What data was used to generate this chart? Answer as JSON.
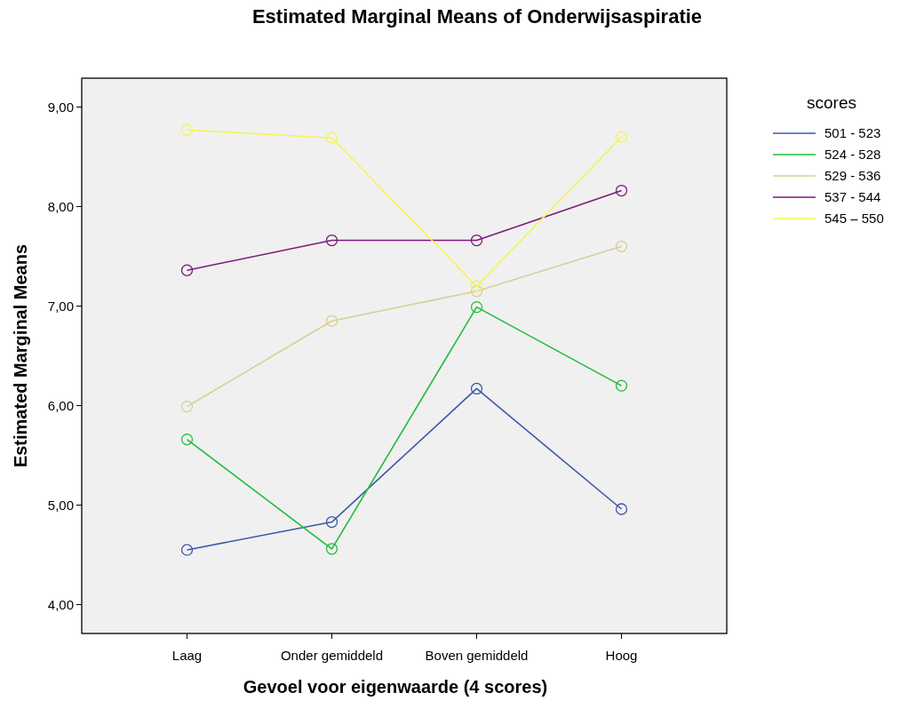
{
  "chart_data": {
    "type": "line",
    "title": "Estimated Marginal Means of Onderwijsaspiratie",
    "xlabel": "Gevoel voor eigenwaarde (4 scores)",
    "ylabel": "Estimated Marginal Means",
    "legend_title": "scores",
    "categories": [
      "Laag",
      "Onder gemiddeld",
      "Boven gemiddeld",
      "Hoog"
    ],
    "series": [
      {
        "name": "501 - 523",
        "color": "#3e58ac",
        "values": [
          4.55,
          4.83,
          6.17,
          4.96
        ]
      },
      {
        "name": "524 - 528",
        "color": "#1fbd3b",
        "values": [
          5.66,
          4.56,
          6.99,
          6.2
        ]
      },
      {
        "name": "529 - 536",
        "color": "#d6d096",
        "values": [
          5.99,
          6.85,
          7.15,
          7.6
        ]
      },
      {
        "name": "537 - 544",
        "color": "#7b1a7b",
        "values": [
          7.36,
          7.66,
          7.66,
          8.16
        ]
      },
      {
        "name": "545 – 550",
        "color": "#f4f45a",
        "values": [
          8.77,
          8.69,
          7.2,
          8.7
        ]
      }
    ],
    "ylim": [
      3.71,
      9.29
    ],
    "yticks": [
      {
        "value": 4,
        "label": "4,00"
      },
      {
        "value": 5,
        "label": "5,00"
      },
      {
        "value": 6,
        "label": "6,00"
      },
      {
        "value": 7,
        "label": "7,00"
      },
      {
        "value": 8,
        "label": "8,00"
      },
      {
        "value": 9,
        "label": "9,00"
      }
    ],
    "marker": "circle",
    "legend": "top right"
  }
}
